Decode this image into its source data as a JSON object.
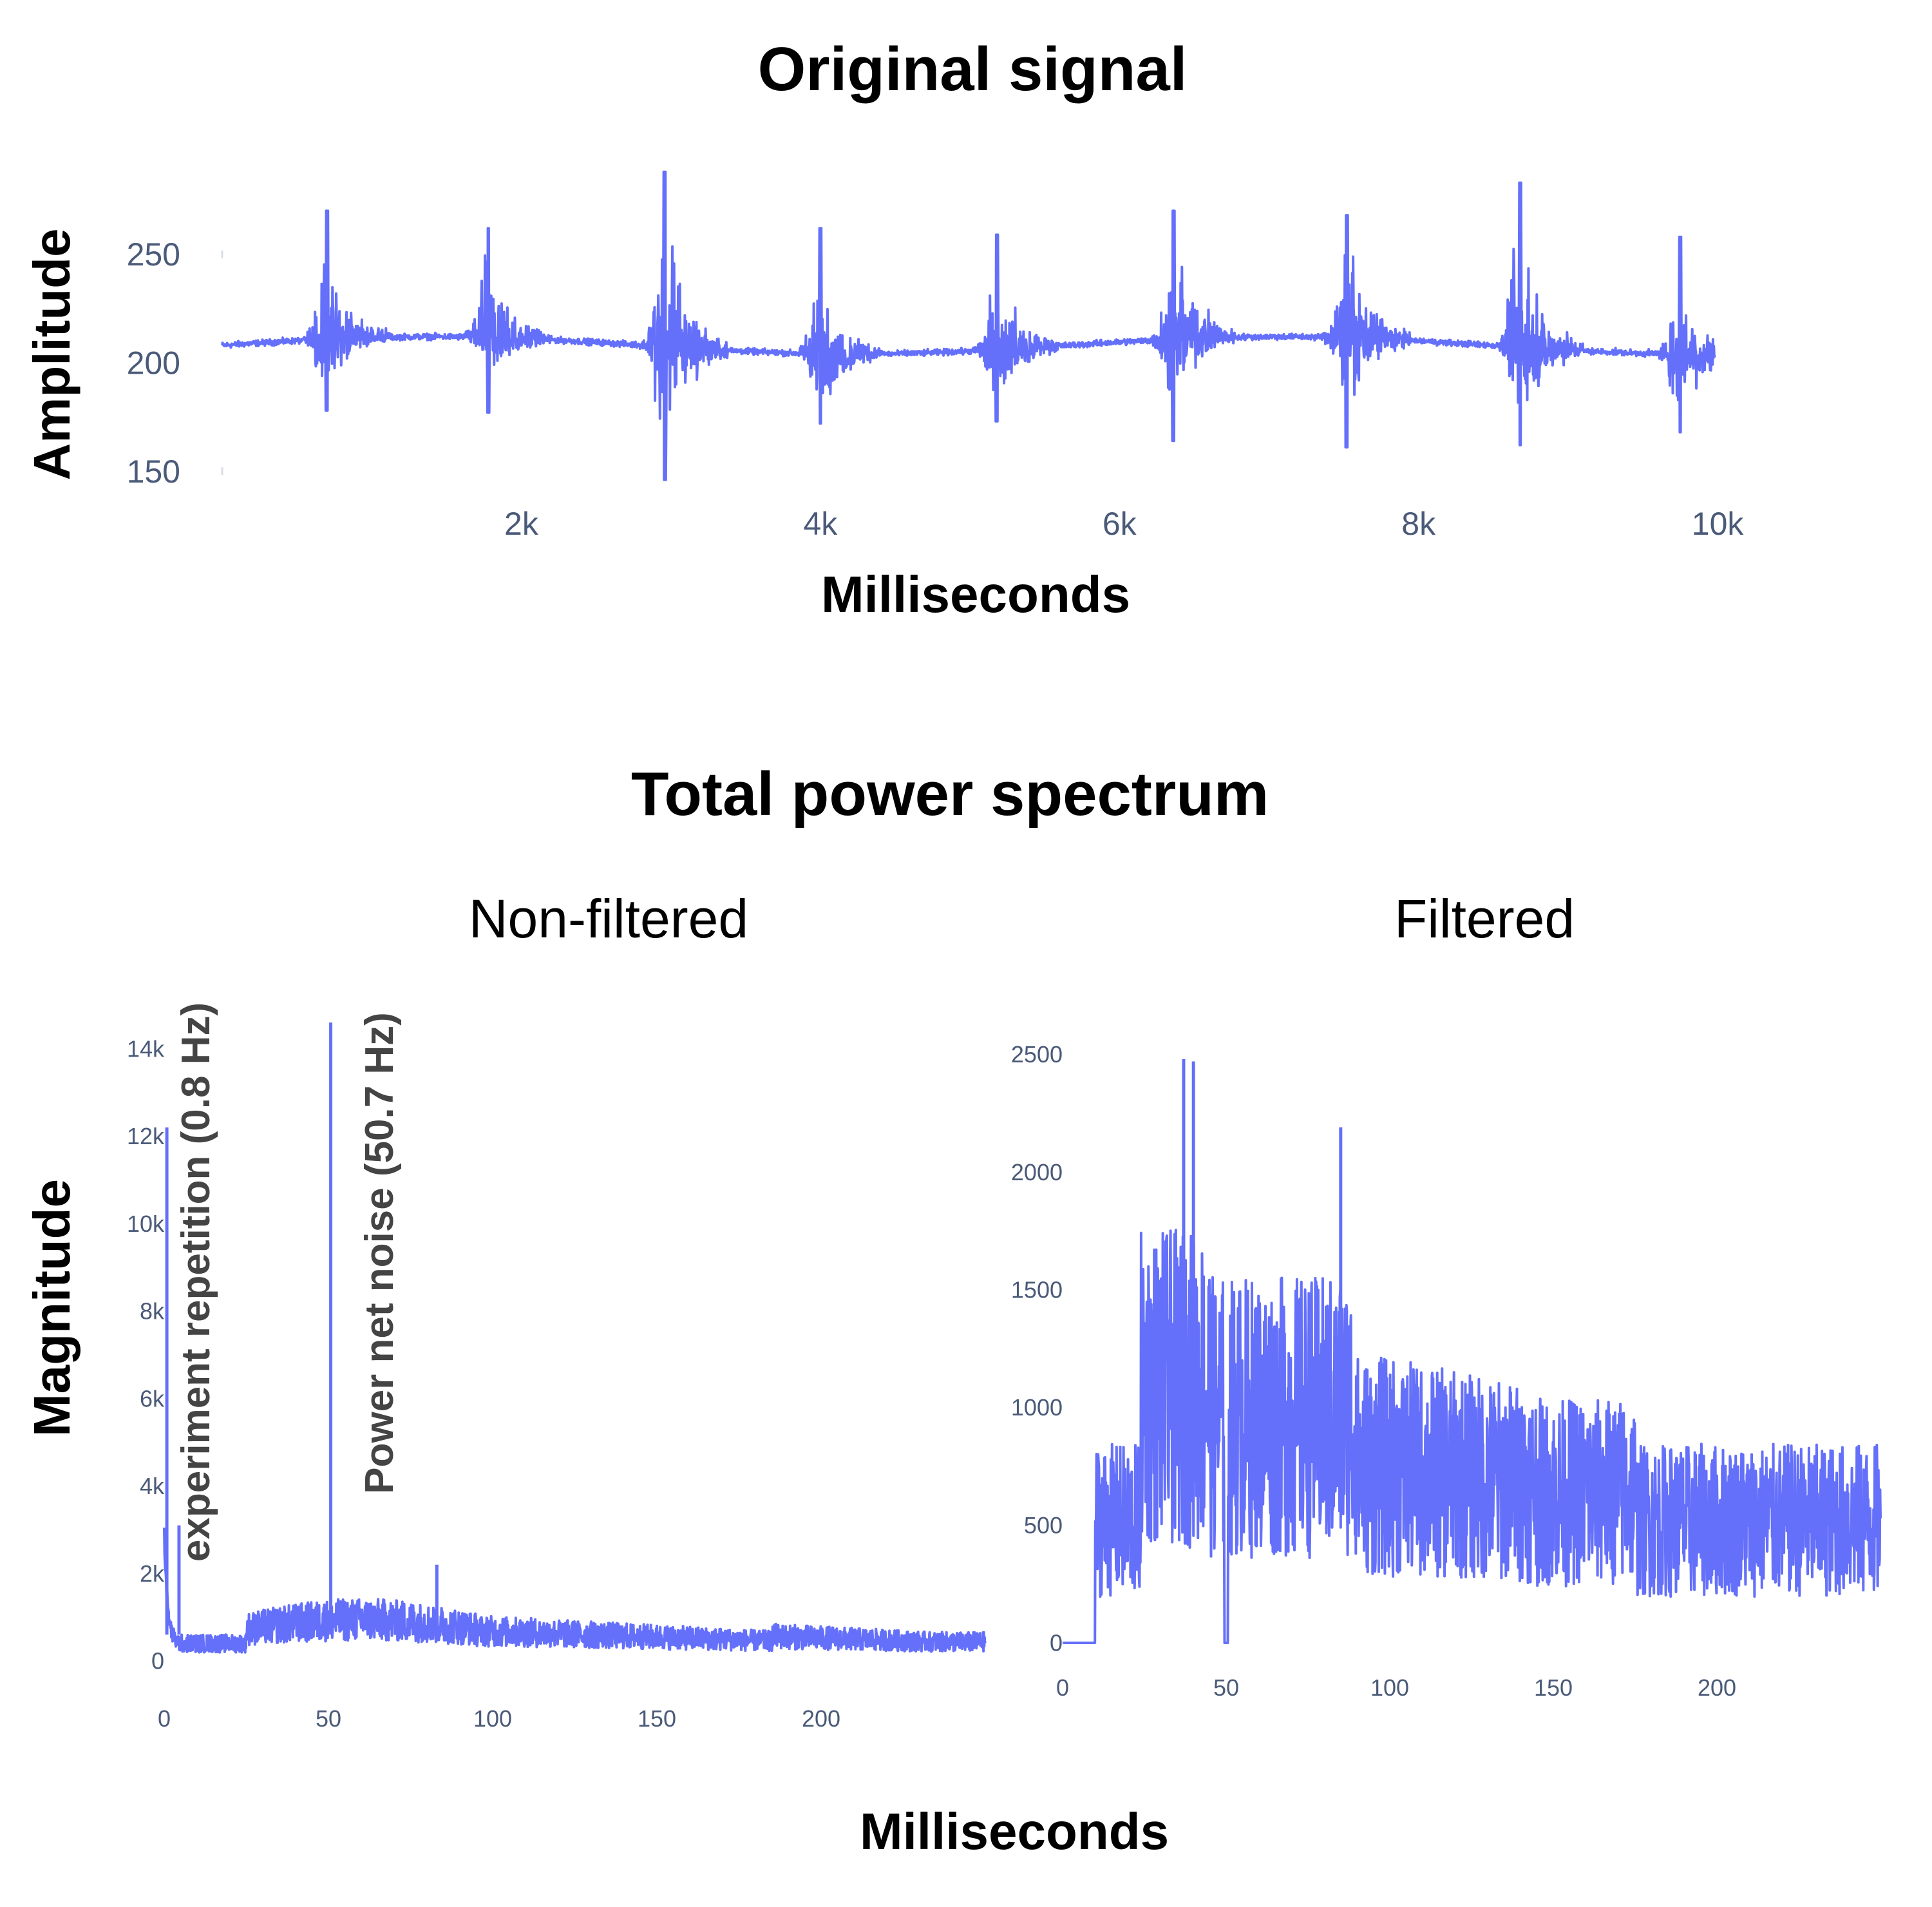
{
  "figure": {
    "top_title": "Original signal",
    "top_ylabel": "Amplitude",
    "top_xlabel": "Milliseconds",
    "bottom_title": "Total power spectrum",
    "bottom_ylabel": "Magnitude",
    "bottom_xlabel": "Milliseconds"
  },
  "colors": {
    "line": "#6470fa",
    "axis_text": "#4a5a78",
    "title": "#000000",
    "annotation": "#444444"
  },
  "chart_data": [
    {
      "id": "original-signal",
      "type": "line",
      "title": "Original signal",
      "xlabel": "Milliseconds",
      "ylabel": "Amplitude",
      "xlim": [
        0,
        10400
      ],
      "ylim": [
        140,
        290
      ],
      "xticks": [
        2000,
        4000,
        6000,
        8000,
        10000
      ],
      "xtick_labels": [
        "2k",
        "4k",
        "6k",
        "8k",
        "10k"
      ],
      "yticks": [
        150,
        200,
        250
      ],
      "ytick_labels": [
        "150",
        "200",
        "250"
      ],
      "baseline": 208,
      "bursts": [
        {
          "x": 700,
          "max": 270,
          "min": 178
        },
        {
          "x": 1780,
          "max": 262,
          "min": 177
        },
        {
          "x": 2960,
          "max": 291,
          "min": 146
        },
        {
          "x": 4000,
          "max": 262,
          "min": 172
        },
        {
          "x": 5180,
          "max": 259,
          "min": 173
        },
        {
          "x": 6360,
          "max": 270,
          "min": 164
        },
        {
          "x": 7520,
          "max": 268,
          "min": 161
        },
        {
          "x": 8680,
          "max": 283,
          "min": 162
        },
        {
          "x": 9750,
          "max": 258,
          "min": 168
        }
      ]
    },
    {
      "id": "non-filtered-spectrum",
      "type": "line",
      "title": "Non-filtered",
      "xlim": [
        0,
        250
      ],
      "ylim": [
        0,
        15000
      ],
      "xticks": [
        0,
        50,
        100,
        150,
        200
      ],
      "xtick_labels": [
        "0",
        "50",
        "100",
        "150",
        "200"
      ],
      "yticks": [
        0,
        2000,
        4000,
        6000,
        8000,
        10000,
        12000,
        14000
      ],
      "ytick_labels": [
        "0",
        "2k",
        "4k",
        "6k",
        "8k",
        "10k",
        "12k",
        "14k"
      ],
      "peaks": [
        {
          "x": 0.8,
          "y": 12200
        },
        {
          "x": 4.5,
          "y": 3100
        },
        {
          "x": 50.7,
          "y": 14600
        },
        {
          "x": 83,
          "y": 2200
        }
      ],
      "annotations": [
        {
          "text": "experiment repetition (0.8 Hz)",
          "x": 0.8
        },
        {
          "text": "Power net noise (50.7 Hz)",
          "x": 50.7
        }
      ]
    },
    {
      "id": "filtered-spectrum",
      "type": "line",
      "title": "Filtered",
      "xlim": [
        0,
        250
      ],
      "ylim": [
        0,
        2600
      ],
      "xticks": [
        0,
        50,
        100,
        150,
        200
      ],
      "xtick_labels": [
        "0",
        "50",
        "100",
        "150",
        "200"
      ],
      "yticks": [
        0,
        500,
        1000,
        1500,
        2000,
        2500
      ],
      "ytick_labels": [
        "0",
        "500",
        "1000",
        "1500",
        "2000",
        "2500"
      ],
      "zero_until": 10,
      "peaks": [
        {
          "x": 37,
          "y": 2480
        },
        {
          "x": 40,
          "y": 2470
        },
        {
          "x": 85,
          "y": 2190
        },
        {
          "x": 50,
          "y": 0
        }
      ]
    }
  ]
}
